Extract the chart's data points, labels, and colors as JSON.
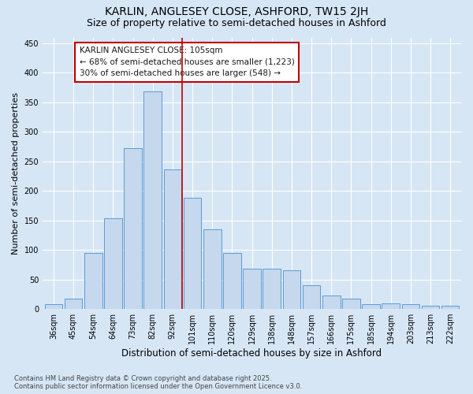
{
  "title": "KARLIN, ANGLESEY CLOSE, ASHFORD, TW15 2JH",
  "subtitle": "Size of property relative to semi-detached houses in Ashford",
  "xlabel": "Distribution of semi-detached houses by size in Ashford",
  "ylabel": "Number of semi-detached properties",
  "categories": [
    "36sqm",
    "45sqm",
    "54sqm",
    "64sqm",
    "73sqm",
    "82sqm",
    "92sqm",
    "101sqm",
    "110sqm",
    "120sqm",
    "129sqm",
    "138sqm",
    "148sqm",
    "157sqm",
    "166sqm",
    "175sqm",
    "185sqm",
    "194sqm",
    "203sqm",
    "213sqm",
    "222sqm"
  ],
  "values": [
    8,
    18,
    95,
    153,
    273,
    369,
    237,
    188,
    135,
    95,
    68,
    68,
    65,
    40,
    23,
    17,
    8,
    10,
    8,
    5,
    5
  ],
  "bar_color": "#c5d8ed",
  "bar_edge_color": "#5b9bd5",
  "vline_x_index": 7.0,
  "vline_color": "#c00000",
  "annotation_text": "KARLIN ANGLESEY CLOSE: 105sqm\n← 68% of semi-detached houses are smaller (1,223)\n30% of semi-detached houses are larger (548) →",
  "annotation_box_color": "#c00000",
  "background_color": "#d6e6f5",
  "plot_bg_color": "#d6e6f5",
  "grid_color": "#ffffff",
  "ylim": [
    0,
    460
  ],
  "yticks": [
    0,
    50,
    100,
    150,
    200,
    250,
    300,
    350,
    400,
    450
  ],
  "footer_text": "Contains HM Land Registry data © Crown copyright and database right 2025.\nContains public sector information licensed under the Open Government Licence v3.0.",
  "title_fontsize": 10,
  "subtitle_fontsize": 9,
  "xlabel_fontsize": 8.5,
  "ylabel_fontsize": 8,
  "tick_fontsize": 7,
  "annotation_fontsize": 7.5,
  "footer_fontsize": 6
}
